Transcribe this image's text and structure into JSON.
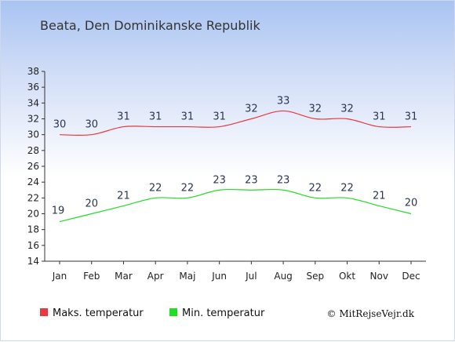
{
  "chart_data": {
    "type": "line",
    "title": "Beata, Den Dominikanske Republik",
    "categories": [
      "Jan",
      "Feb",
      "Mar",
      "Apr",
      "Maj",
      "Jun",
      "Jul",
      "Aug",
      "Sep",
      "Okt",
      "Nov",
      "Dec"
    ],
    "series": [
      {
        "name": "Maks. temperatur",
        "color": "#e8393f",
        "values": [
          30,
          30,
          31,
          31,
          31,
          31,
          32,
          33,
          32,
          32,
          31,
          31
        ]
      },
      {
        "name": "Min. temperatur",
        "color": "#22dd22",
        "values": [
          19,
          20,
          21,
          22,
          22,
          23,
          23,
          23,
          22,
          22,
          21,
          20
        ]
      }
    ],
    "yticks": [
      14,
      16,
      18,
      20,
      22,
      24,
      26,
      28,
      30,
      32,
      34,
      36,
      38
    ],
    "ylim": [
      14,
      38
    ],
    "grid": false,
    "legend_position": "bottom"
  },
  "copyright": "© MitRejseVejr.dk"
}
